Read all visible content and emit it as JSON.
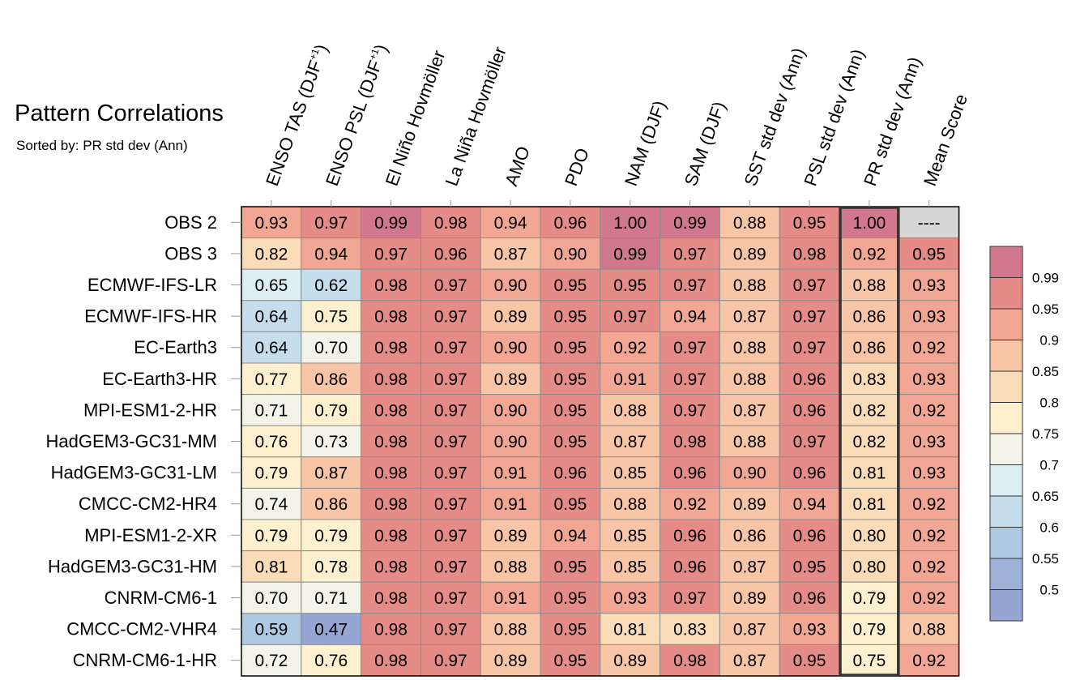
{
  "chart_data": {
    "type": "heatmap",
    "title": "Pattern Correlations",
    "subtitle": "Sorted by: PR std dev (Ann)",
    "columns": [
      {
        "label": "ENSO TAS (DJF",
        "sup": "+1",
        "suffix": ")"
      },
      {
        "label": "ENSO PSL (DJF",
        "sup": "+1",
        "suffix": ")"
      },
      {
        "label": "El Niño Hovmöller"
      },
      {
        "label": "La Niña Hovmöller"
      },
      {
        "label": "AMO"
      },
      {
        "label": "PDO"
      },
      {
        "label": "NAM (DJF)"
      },
      {
        "label": "SAM (DJF)"
      },
      {
        "label": "SST std dev (Ann)"
      },
      {
        "label": "PSL std dev (Ann)"
      },
      {
        "label": "PR std dev (Ann)"
      },
      {
        "label": "Mean Score"
      }
    ],
    "highlighted_column": "PR std dev (Ann)",
    "rows": [
      {
        "name": "OBS 2",
        "values": [
          "0.93",
          "0.97",
          "0.99",
          "0.98",
          "0.94",
          "0.96",
          "1.00",
          "0.99",
          "0.88",
          "0.95",
          "1.00",
          "----"
        ]
      },
      {
        "name": "OBS 3",
        "values": [
          "0.82",
          "0.94",
          "0.97",
          "0.96",
          "0.87",
          "0.90",
          "0.99",
          "0.97",
          "0.89",
          "0.98",
          "0.92",
          "0.95"
        ]
      },
      {
        "name": "ECMWF-IFS-LR",
        "values": [
          "0.65",
          "0.62",
          "0.98",
          "0.97",
          "0.90",
          "0.95",
          "0.95",
          "0.97",
          "0.88",
          "0.97",
          "0.88",
          "0.93"
        ]
      },
      {
        "name": "ECMWF-IFS-HR",
        "values": [
          "0.64",
          "0.75",
          "0.98",
          "0.97",
          "0.89",
          "0.95",
          "0.97",
          "0.94",
          "0.87",
          "0.97",
          "0.86",
          "0.93"
        ]
      },
      {
        "name": "EC-Earth3",
        "values": [
          "0.64",
          "0.70",
          "0.98",
          "0.97",
          "0.90",
          "0.95",
          "0.92",
          "0.97",
          "0.88",
          "0.97",
          "0.86",
          "0.92"
        ]
      },
      {
        "name": "EC-Earth3-HR",
        "values": [
          "0.77",
          "0.86",
          "0.98",
          "0.97",
          "0.89",
          "0.95",
          "0.91",
          "0.97",
          "0.88",
          "0.96",
          "0.83",
          "0.93"
        ]
      },
      {
        "name": "MPI-ESM1-2-HR",
        "values": [
          "0.71",
          "0.79",
          "0.98",
          "0.97",
          "0.90",
          "0.95",
          "0.88",
          "0.97",
          "0.87",
          "0.96",
          "0.82",
          "0.92"
        ]
      },
      {
        "name": "HadGEM3-GC31-MM",
        "values": [
          "0.76",
          "0.73",
          "0.98",
          "0.97",
          "0.90",
          "0.95",
          "0.87",
          "0.98",
          "0.88",
          "0.97",
          "0.82",
          "0.93"
        ]
      },
      {
        "name": "HadGEM3-GC31-LM",
        "values": [
          "0.79",
          "0.87",
          "0.98",
          "0.97",
          "0.91",
          "0.96",
          "0.85",
          "0.96",
          "0.90",
          "0.96",
          "0.81",
          "0.93"
        ]
      },
      {
        "name": "CMCC-CM2-HR4",
        "values": [
          "0.74",
          "0.86",
          "0.98",
          "0.97",
          "0.91",
          "0.95",
          "0.88",
          "0.92",
          "0.89",
          "0.94",
          "0.81",
          "0.92"
        ]
      },
      {
        "name": "MPI-ESM1-2-XR",
        "values": [
          "0.79",
          "0.79",
          "0.98",
          "0.97",
          "0.89",
          "0.94",
          "0.85",
          "0.96",
          "0.86",
          "0.96",
          "0.80",
          "0.92"
        ]
      },
      {
        "name": "HadGEM3-GC31-HM",
        "values": [
          "0.81",
          "0.78",
          "0.98",
          "0.97",
          "0.88",
          "0.95",
          "0.85",
          "0.96",
          "0.87",
          "0.95",
          "0.80",
          "0.92"
        ]
      },
      {
        "name": "CNRM-CM6-1",
        "values": [
          "0.70",
          "0.71",
          "0.98",
          "0.97",
          "0.91",
          "0.95",
          "0.93",
          "0.97",
          "0.89",
          "0.96",
          "0.79",
          "0.92"
        ]
      },
      {
        "name": "CMCC-CM2-VHR4",
        "values": [
          "0.59",
          "0.47",
          "0.98",
          "0.97",
          "0.88",
          "0.95",
          "0.81",
          "0.83",
          "0.87",
          "0.93",
          "0.79",
          "0.88"
        ]
      },
      {
        "name": "CNRM-CM6-1-HR",
        "values": [
          "0.72",
          "0.76",
          "0.98",
          "0.97",
          "0.89",
          "0.95",
          "0.89",
          "0.98",
          "0.87",
          "0.95",
          "0.75",
          "0.92"
        ]
      }
    ],
    "colorbar": {
      "levels": [
        "0.99",
        "0.95",
        "0.9",
        "0.85",
        "0.8",
        "0.75",
        "0.7",
        "0.65",
        "0.6",
        "0.55",
        "0.5"
      ],
      "thresholds": [
        0.99,
        0.95,
        0.9,
        0.85,
        0.8,
        0.75,
        0.7,
        0.65,
        0.6,
        0.55,
        0.5
      ],
      "colors": [
        "#d2788d",
        "#e68c88",
        "#f2a795",
        "#f8c6a6",
        "#fbdcb8",
        "#fcf0cf",
        "#f3f3ea",
        "#deeff3",
        "#c6deeb",
        "#b0c9e2",
        "#9fb3d9",
        "#96a6d3"
      ]
    },
    "missing_color": "#d6d6d6"
  }
}
